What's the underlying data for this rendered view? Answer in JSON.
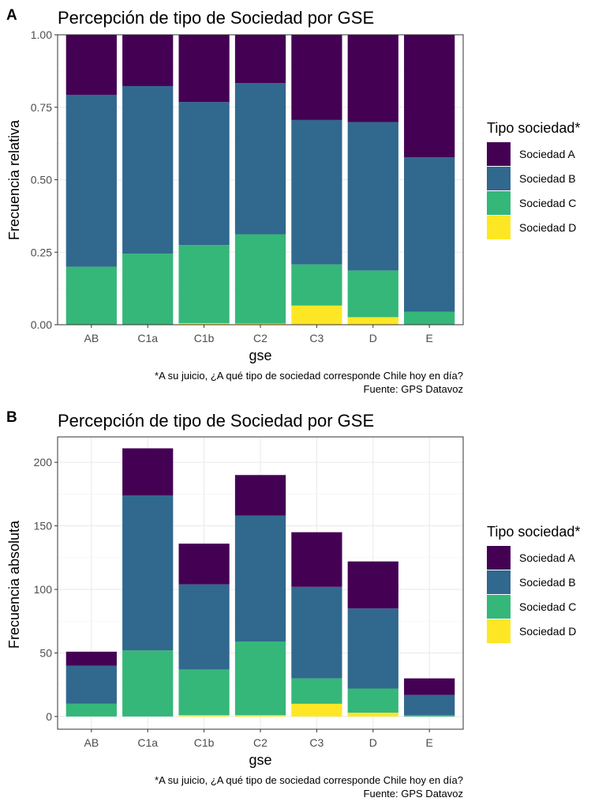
{
  "colors": {
    "Sociedad A": "#440154",
    "Sociedad B": "#31688E",
    "Sociedad C": "#35B779",
    "Sociedad D": "#FDE725"
  },
  "legend": {
    "title": "Tipo sociedad*",
    "items": [
      "Sociedad A",
      "Sociedad B",
      "Sociedad C",
      "Sociedad D"
    ]
  },
  "chart_data": [
    {
      "panel": "A",
      "type": "bar",
      "stacked": true,
      "title": "Percepción de tipo de Sociedad por GSE",
      "xlabel": "gse",
      "ylabel": "Frecuencia relativa",
      "ylim": [
        0,
        1
      ],
      "yticks": [
        0,
        0.25,
        0.5,
        0.75,
        1
      ],
      "ytick_labels": [
        "0.00",
        "0.25",
        "0.50",
        "0.75",
        "1.00"
      ],
      "categories": [
        "AB",
        "C1a",
        "C1b",
        "C2",
        "C3",
        "D",
        "E"
      ],
      "series": [
        {
          "name": "Sociedad D",
          "values": [
            0,
            0,
            0.005,
            0.004,
            0.066,
            0.026,
            0
          ]
        },
        {
          "name": "Sociedad C",
          "values": [
            0.2,
            0.245,
            0.27,
            0.308,
            0.142,
            0.161,
            0.045
          ]
        },
        {
          "name": "Sociedad B",
          "values": [
            0.593,
            0.578,
            0.493,
            0.521,
            0.498,
            0.512,
            0.532
          ]
        },
        {
          "name": "Sociedad A",
          "values": [
            0.207,
            0.177,
            0.232,
            0.167,
            0.294,
            0.301,
            0.423
          ]
        }
      ],
      "caption": [
        "*A su juicio, ¿A qué tipo de sociedad corresponde Chile hoy en día?",
        "Fuente: GPS Datavoz"
      ]
    },
    {
      "panel": "B",
      "type": "bar",
      "stacked": true,
      "title": "Percepción de tipo de Sociedad por GSE",
      "xlabel": "gse",
      "ylabel": "Frecuencia absoluta",
      "ylim": [
        -10,
        220
      ],
      "yticks": [
        0,
        50,
        100,
        150,
        200
      ],
      "ytick_labels": [
        "0",
        "50",
        "100",
        "150",
        "200"
      ],
      "categories": [
        "AB",
        "C1a",
        "C1b",
        "C2",
        "C3",
        "D",
        "E"
      ],
      "series": [
        {
          "name": "Sociedad D",
          "values": [
            0,
            0,
            1,
            1,
            10,
            3,
            0
          ]
        },
        {
          "name": "Sociedad C",
          "values": [
            10,
            52,
            36,
            58,
            20,
            19,
            1
          ]
        },
        {
          "name": "Sociedad B",
          "values": [
            30,
            122,
            67,
            99,
            72,
            63,
            16
          ]
        },
        {
          "name": "Sociedad A",
          "values": [
            11,
            37,
            32,
            32,
            43,
            37,
            13
          ]
        }
      ],
      "caption": [
        "*A su juicio, ¿A qué tipo de sociedad corresponde Chile hoy en día?",
        "Fuente: GPS Datavoz"
      ]
    }
  ]
}
